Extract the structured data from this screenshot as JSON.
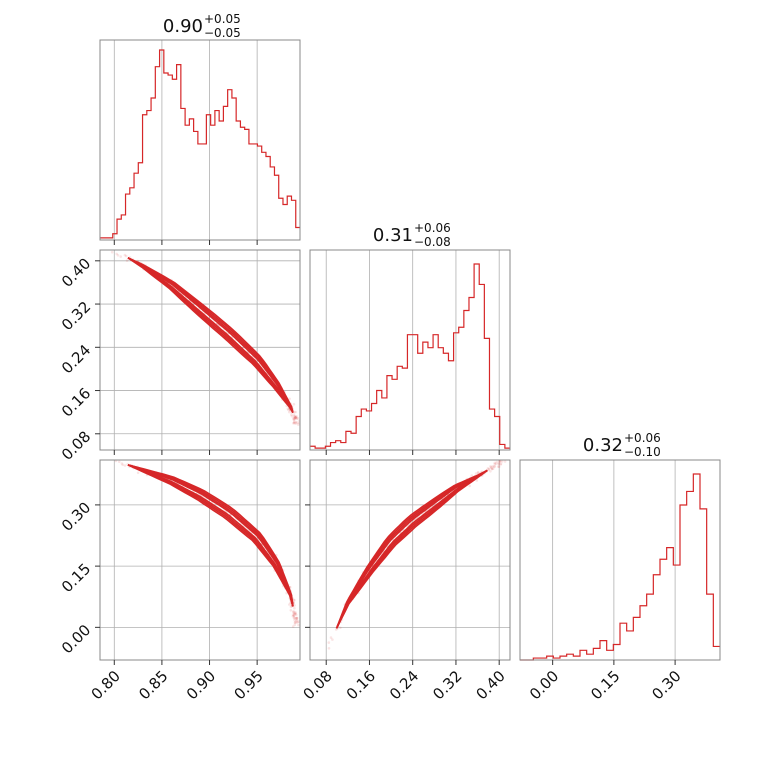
{
  "colors": {
    "series": "#d62728",
    "frame": "#888888",
    "grid": "#b0b0b0"
  },
  "chart_data": {
    "type": "corner",
    "grid": true,
    "parameters": [
      {
        "index": 0,
        "title": {
          "value": "0.90",
          "upper": "+0.05",
          "lower": "−0.05"
        },
        "range": [
          0.785,
          0.995
        ],
        "ticks": [
          0.8,
          0.85,
          0.9,
          0.95
        ],
        "tick_labels": [
          "0.80",
          "0.85",
          "0.90",
          "0.95"
        ],
        "histogram": [
          0.01,
          0.01,
          0.01,
          0.03,
          0.1,
          0.12,
          0.22,
          0.25,
          0.32,
          0.37,
          0.6,
          0.62,
          0.68,
          0.83,
          0.91,
          0.8,
          0.79,
          0.77,
          0.84,
          0.63,
          0.55,
          0.58,
          0.52,
          0.46,
          0.46,
          0.6,
          0.55,
          0.62,
          0.57,
          0.64,
          0.72,
          0.68,
          0.57,
          0.54,
          0.53,
          0.46,
          0.46,
          0.45,
          0.42,
          0.4,
          0.35,
          0.31,
          0.2,
          0.17,
          0.21,
          0.19,
          0.06
        ]
      },
      {
        "index": 1,
        "title": {
          "value": "0.31",
          "upper": "+0.06",
          "lower": "−0.08"
        },
        "range": [
          0.05,
          0.42
        ],
        "ticks": [
          0.08,
          0.16,
          0.24,
          0.32,
          0.4
        ],
        "tick_labels": [
          "0.08",
          "0.16",
          "0.24",
          "0.32",
          "0.40"
        ],
        "histogram": [
          0.02,
          0.01,
          0.01,
          0.02,
          0.04,
          0.05,
          0.04,
          0.1,
          0.09,
          0.18,
          0.22,
          0.21,
          0.25,
          0.32,
          0.28,
          0.4,
          0.38,
          0.45,
          0.44,
          0.62,
          0.62,
          0.52,
          0.58,
          0.55,
          0.62,
          0.55,
          0.52,
          0.48,
          0.63,
          0.66,
          0.75,
          0.82,
          1.0,
          0.89,
          0.6,
          0.22,
          0.18,
          0.03,
          0.01
        ]
      },
      {
        "index": 2,
        "title": {
          "value": "0.32",
          "upper": "+0.06",
          "lower": "−0.10"
        },
        "range": [
          -0.08,
          0.41
        ],
        "ticks": [
          0.0,
          0.15,
          0.3
        ],
        "tick_labels": [
          "0.00",
          "0.15",
          "0.30"
        ],
        "histogram": [
          0.0,
          0.0,
          0.01,
          0.01,
          0.02,
          0.01,
          0.02,
          0.03,
          0.02,
          0.05,
          0.03,
          0.06,
          0.1,
          0.05,
          0.08,
          0.19,
          0.15,
          0.22,
          0.28,
          0.34,
          0.44,
          0.52,
          0.58,
          0.49,
          0.8,
          0.87,
          0.96,
          0.78,
          0.34,
          0.07
        ]
      }
    ],
    "pairs": [
      {
        "x_param": 0,
        "y_param": 1,
        "curve": [
          [
            0.8,
            0.42
          ],
          [
            0.83,
            0.39
          ],
          [
            0.86,
            0.355
          ],
          [
            0.89,
            0.31
          ],
          [
            0.92,
            0.265
          ],
          [
            0.95,
            0.215
          ],
          [
            0.97,
            0.17
          ],
          [
            0.985,
            0.13
          ],
          [
            0.992,
            0.1
          ]
        ]
      },
      {
        "x_param": 0,
        "y_param": 2,
        "curve": [
          [
            0.8,
            0.41
          ],
          [
            0.83,
            0.385
          ],
          [
            0.86,
            0.36
          ],
          [
            0.89,
            0.325
          ],
          [
            0.92,
            0.28
          ],
          [
            0.95,
            0.22
          ],
          [
            0.97,
            0.155
          ],
          [
            0.985,
            0.08
          ],
          [
            0.992,
            0.0
          ]
        ]
      },
      {
        "x_param": 1,
        "y_param": 2,
        "curve": [
          [
            0.08,
            -0.06
          ],
          [
            0.12,
            0.06
          ],
          [
            0.16,
            0.14
          ],
          [
            0.2,
            0.21
          ],
          [
            0.24,
            0.26
          ],
          [
            0.28,
            0.3
          ],
          [
            0.32,
            0.34
          ],
          [
            0.36,
            0.37
          ],
          [
            0.41,
            0.41
          ]
        ]
      }
    ]
  }
}
